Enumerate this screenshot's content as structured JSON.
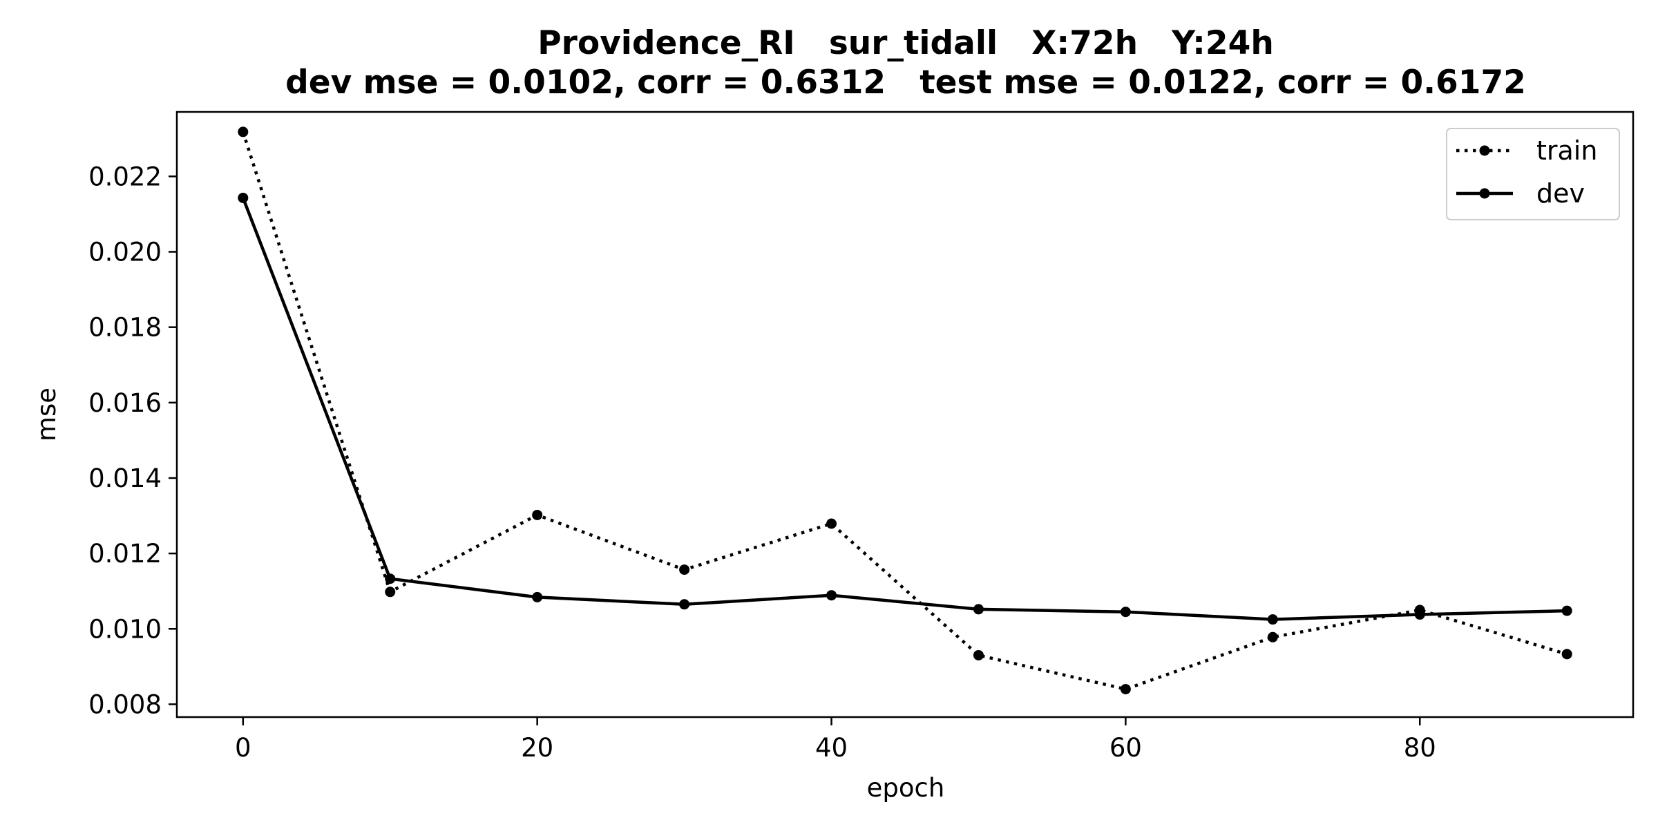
{
  "chart_data": {
    "type": "line",
    "title": "Providence_RI   sur_tidall   X:72h   Y:24h",
    "subtitle": "dev mse = 0.0102, corr = 0.6312   test mse = 0.0122, corr = 0.6172",
    "xlabel": "epoch",
    "ylabel": "mse",
    "xlim": [
      -4.5,
      94.5
    ],
    "ylim": [
      0.00766,
      0.02371
    ],
    "xticks": [
      0,
      20,
      40,
      60,
      80
    ],
    "xtick_labels": [
      "0",
      "20",
      "40",
      "60",
      "80"
    ],
    "yticks": [
      0.008,
      0.01,
      0.012,
      0.014,
      0.016,
      0.018,
      0.02,
      0.022
    ],
    "ytick_labels": [
      "0.008",
      "0.010",
      "0.012",
      "0.014",
      "0.016",
      "0.018",
      "0.020",
      "0.022"
    ],
    "grid": false,
    "legend_position": "top-right",
    "x": [
      0,
      10,
      20,
      30,
      40,
      50,
      60,
      70,
      80,
      90
    ],
    "series": [
      {
        "name": "train",
        "style": "dotted",
        "color": "#000000",
        "values": [
          0.02318,
          0.01098,
          0.01302,
          0.01157,
          0.01279,
          0.0093,
          0.0084,
          0.00978,
          0.0105,
          0.00933
        ]
      },
      {
        "name": "dev",
        "style": "solid",
        "color": "#000000",
        "values": [
          0.02143,
          0.01133,
          0.01084,
          0.01065,
          0.01089,
          0.01052,
          0.01045,
          0.01025,
          0.01038,
          0.01048
        ]
      }
    ]
  }
}
